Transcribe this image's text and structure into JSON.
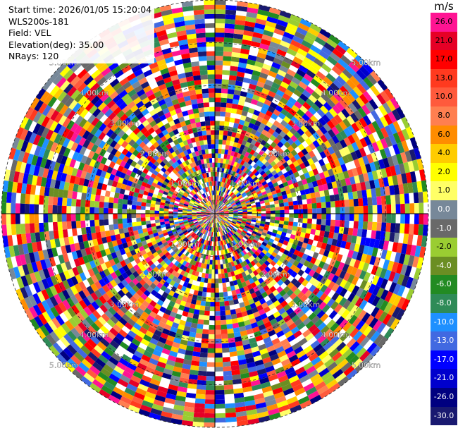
{
  "info": {
    "start_time": "Start time: 2026/01/05 15:20:04",
    "instrument": "WLS200s-181",
    "field": "Field: VEL",
    "elevation": "Elevation(deg): 35.00",
    "nrays": "NRays: 120"
  },
  "chart_data": {
    "type": "heatmap",
    "projection": "polar-ppi",
    "title": "",
    "n_rays": 120,
    "range_max_km": 5.0,
    "range_rings_km": [
      1.0,
      2.0,
      3.0,
      4.0,
      5.0
    ],
    "ring_labels": [
      "1.00km",
      "2.00km",
      "3.00km",
      "4.00km",
      "5.00km"
    ],
    "grid": true,
    "colorbar": {
      "title": "m/s",
      "bins": [
        {
          "label": "26.0",
          "color": "#ff1493"
        },
        {
          "label": "21.0",
          "color": "#e60026"
        },
        {
          "label": "17.0",
          "color": "#ff0000"
        },
        {
          "label": "13.0",
          "color": "#ff3a1f"
        },
        {
          "label": "10.0",
          "color": "#ff5a3c"
        },
        {
          "label": "8.0",
          "color": "#ff7f50"
        },
        {
          "label": "6.0",
          "color": "#ff8c00"
        },
        {
          "label": "4.0",
          "color": "#ffcc00"
        },
        {
          "label": "2.0",
          "color": "#ffff00"
        },
        {
          "label": "1.0",
          "color": "#ffff66"
        },
        {
          "label": "0.0",
          "color": "#778899"
        },
        {
          "label": "-1.0",
          "color": "#696969"
        },
        {
          "label": "-2.0",
          "color": "#9acd32"
        },
        {
          "label": "-4.0",
          "color": "#6b8e23"
        },
        {
          "label": "-6.0",
          "color": "#228b22"
        },
        {
          "label": "-8.0",
          "color": "#2e8b57"
        },
        {
          "label": "-10.0",
          "color": "#1e90ff"
        },
        {
          "label": "-13.0",
          "color": "#4169e1"
        },
        {
          "label": "-17.0",
          "color": "#0000ff"
        },
        {
          "label": "-21.0",
          "color": "#0000cd"
        },
        {
          "label": "-26.0",
          "color": "#000080"
        },
        {
          "label": "-30.0",
          "color": "#191970"
        }
      ]
    }
  }
}
